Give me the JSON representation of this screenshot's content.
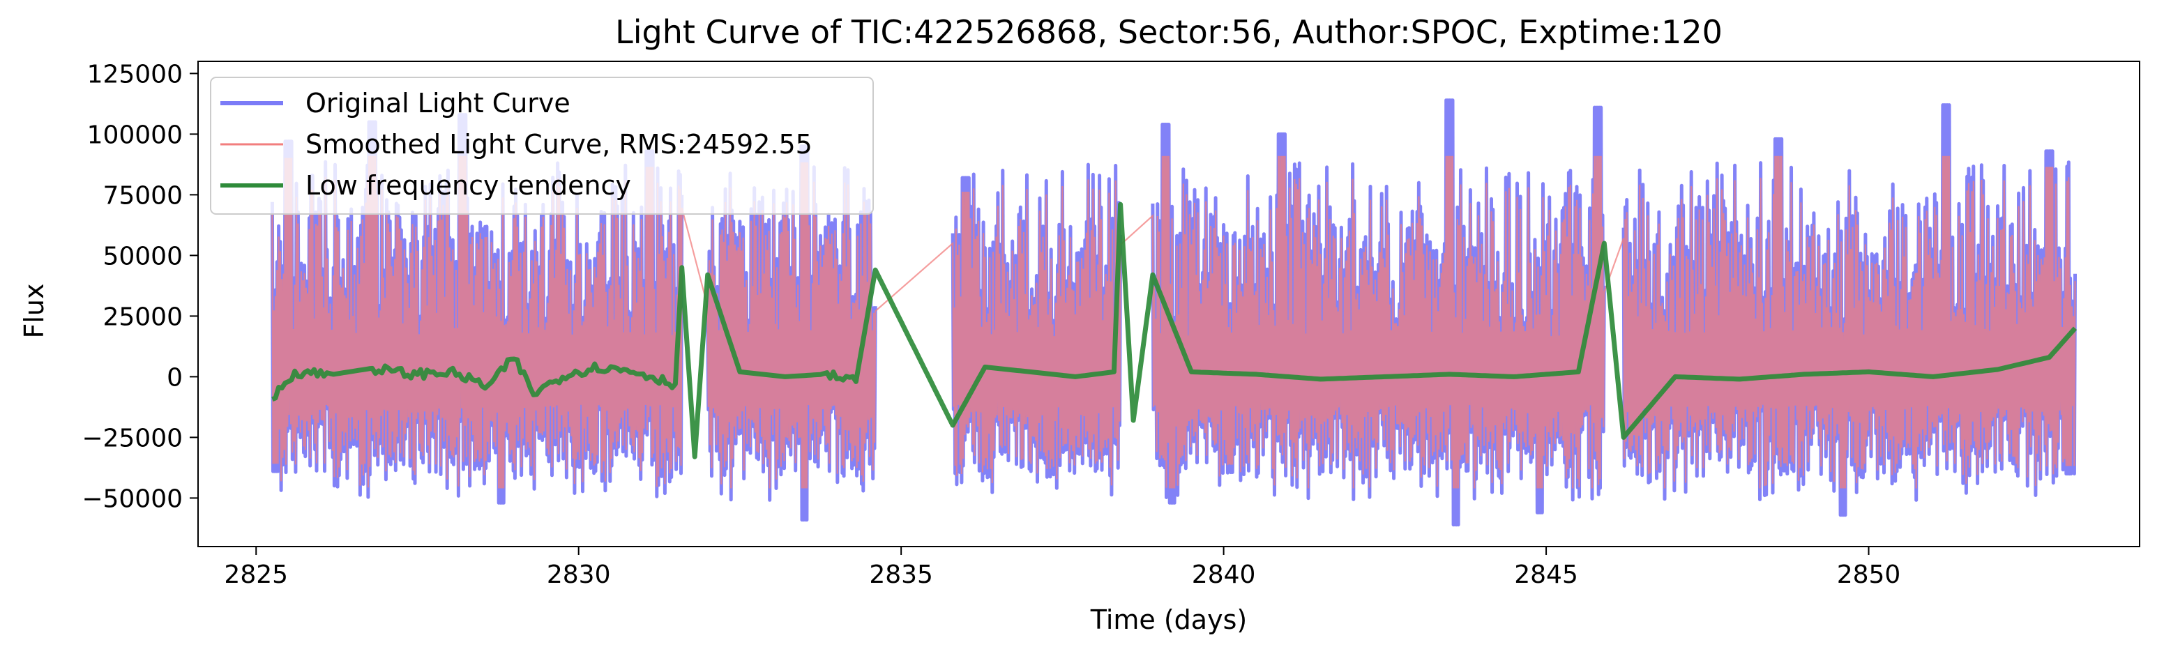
{
  "chart_data": {
    "type": "line",
    "title": "Light Curve of TIC:422526868, Sector:56, Author:SPOC, Exptime:120",
    "xlabel": "Time (days)",
    "ylabel": "Flux",
    "xlim": [
      2824.1,
      2854.2
    ],
    "ylim": [
      -70000,
      130000
    ],
    "x_ticks": [
      2825,
      2830,
      2835,
      2840,
      2845,
      2850
    ],
    "x_tick_labels": [
      "2825",
      "2830",
      "2835",
      "2840",
      "2845",
      "2850"
    ],
    "y_ticks": [
      -50000,
      -25000,
      0,
      25000,
      50000,
      75000,
      100000,
      125000
    ],
    "y_tick_labels": [
      "−50000",
      "−25000",
      "0",
      "25000",
      "50000",
      "75000",
      "100000",
      "125000"
    ],
    "grid": false,
    "legend_position": "top-left",
    "data_segments": [
      [
        2825.25,
        2831.6
      ],
      [
        2832.0,
        2834.6
      ],
      [
        2835.8,
        2838.4
      ],
      [
        2838.9,
        2845.9
      ],
      [
        2846.2,
        2853.2
      ]
    ],
    "series": [
      {
        "name": "Original Light Curve",
        "color": "#7b7bf7",
        "style": "thick",
        "typical_range": [
          -42000,
          72000
        ],
        "peaks": [
          [
            2825.5,
            97000
          ],
          [
            2826.8,
            105000
          ],
          [
            2828.2,
            108000
          ],
          [
            2831.1,
            93000
          ],
          [
            2833.5,
            95000
          ],
          [
            2836.0,
            82000
          ],
          [
            2839.1,
            104000
          ],
          [
            2840.9,
            100000
          ],
          [
            2843.5,
            114000
          ],
          [
            2845.8,
            111000
          ],
          [
            2848.6,
            98000
          ],
          [
            2851.2,
            112000
          ],
          [
            2852.8,
            93000
          ]
        ],
        "troughs": [
          [
            2825.3,
            -39000
          ],
          [
            2828.8,
            -52000
          ],
          [
            2833.5,
            -59000
          ],
          [
            2839.2,
            -52000
          ],
          [
            2843.6,
            -61000
          ],
          [
            2844.9,
            -56000
          ],
          [
            2849.6,
            -57000
          ],
          [
            2853.1,
            -40000
          ]
        ]
      },
      {
        "name": "Smoothed Light Curve, RMS:24592.55",
        "color": "#f27e7e",
        "style": "thin",
        "typical_range": [
          -38000,
          66000
        ]
      },
      {
        "name": "Low frequency tendency",
        "color": "#2e8b3a",
        "style": "thick",
        "x": [
          2825.25,
          2825.6,
          2826.2,
          2826.8,
          2827.4,
          2828.0,
          2828.6,
          2829.0,
          2829.3,
          2829.8,
          2830.3,
          2830.9,
          2831.5,
          2831.6,
          2831.8,
          2832.0,
          2832.5,
          2833.2,
          2833.8,
          2834.3,
          2834.6,
          2835.8,
          2836.3,
          2837.0,
          2837.7,
          2838.3,
          2838.4,
          2838.6,
          2838.9,
          2839.5,
          2840.5,
          2841.5,
          2842.5,
          2843.5,
          2844.5,
          2845.5,
          2845.9,
          2846.2,
          2847.0,
          2848.0,
          2849.0,
          2850.0,
          2851.0,
          2852.0,
          2852.8,
          2853.2
        ],
        "y": [
          -9000,
          2000,
          1000,
          3500,
          1000,
          2000,
          -4000,
          8000,
          -7000,
          1000,
          4000,
          2000,
          -3000,
          45000,
          -33000,
          42000,
          2000,
          0,
          1000,
          -2000,
          44000,
          -20000,
          4000,
          2000,
          0,
          2000,
          71000,
          -18000,
          42000,
          2000,
          1000,
          -1000,
          0,
          1000,
          0,
          2000,
          55000,
          -25000,
          0,
          -1000,
          1000,
          2000,
          0,
          3000,
          8000,
          20000
        ]
      }
    ]
  }
}
